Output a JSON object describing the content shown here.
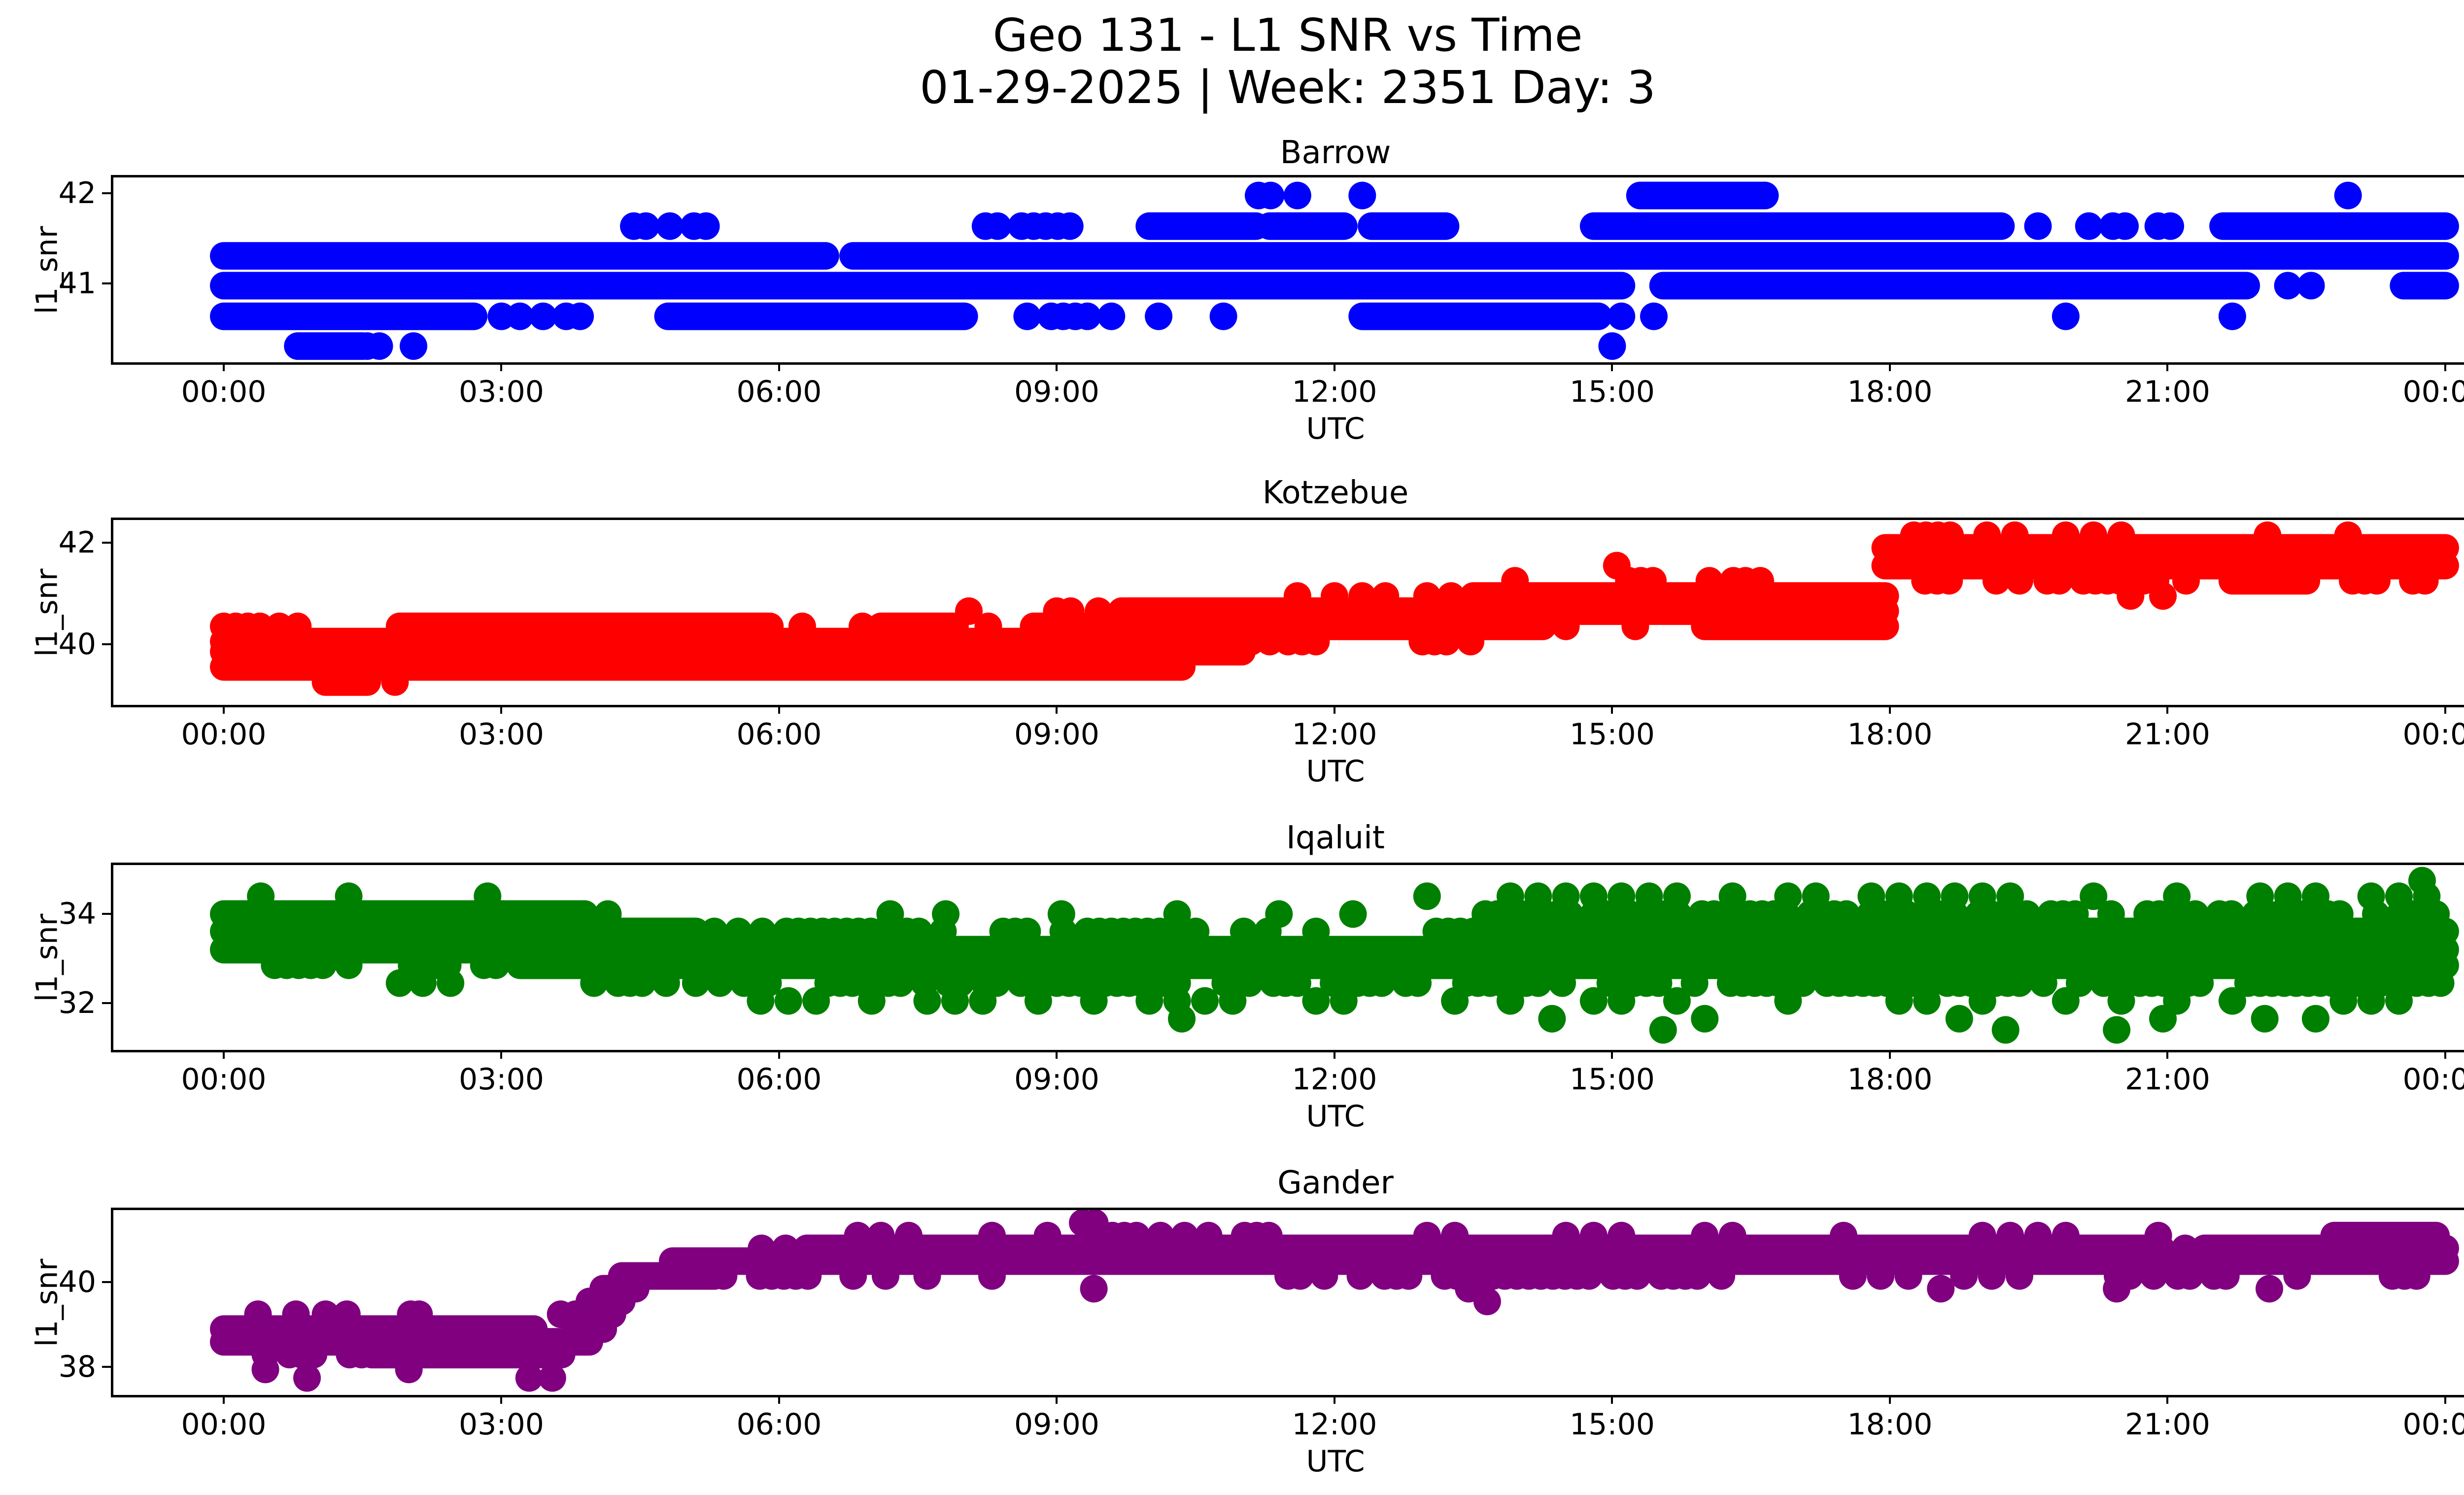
{
  "figure": {
    "suptitle_line1": "Geo 131 - L1 SNR vs Time",
    "suptitle_line2": "01-29-2025 | Week: 2351 Day: 3",
    "background_color": "#ffffff",
    "text_color": "#000000"
  },
  "xaxis": {
    "label": "UTC",
    "tick_hours": [
      0,
      3,
      6,
      9,
      12,
      15,
      18,
      21,
      24
    ],
    "tick_labels": [
      "00:00",
      "03:00",
      "06:00",
      "09:00",
      "12:00",
      "15:00",
      "18:00",
      "21:00",
      "00:00"
    ]
  },
  "chart_data": [
    {
      "type": "scatter",
      "title": "Barrow",
      "color": "#0000ff",
      "ylabel": "l1_snr",
      "xlabel": "UTC",
      "x_range_hours": [
        0,
        24
      ],
      "ylim": [
        40.15,
        42.2
      ],
      "yticks": [
        {
          "value": 41,
          "label": "41"
        },
        {
          "value": 42,
          "label": "42"
        }
      ],
      "bands": [
        {
          "snr": 42.0,
          "segments": [
            [
              11.05,
              11.35,
              "m"
            ],
            [
              15.3,
              16.65,
              "d"
            ],
            [
              16.65,
              17.0,
              "m"
            ]
          ],
          "dots": [
            11.6,
            12.3,
            22.95
          ]
        },
        {
          "snr": 41.66,
          "segments": [
            [
              4.3,
              5.3,
              "m"
            ],
            [
              8.1,
              9.3,
              "m"
            ],
            [
              10.0,
              11.15,
              "d"
            ],
            [
              11.3,
              12.1,
              "d"
            ],
            [
              12.4,
              13.2,
              "d"
            ],
            [
              14.8,
              19.2,
              "d"
            ],
            [
              20.15,
              20.6,
              "m"
            ],
            [
              20.9,
              21.25,
              "m"
            ],
            [
              21.6,
              24.0,
              "d"
            ]
          ],
          "dots": [
            19.6
          ]
        },
        {
          "snr": 41.33,
          "segments": [
            [
              0.0,
              6.5,
              "d"
            ],
            [
              6.8,
              24.0,
              "d"
            ]
          ],
          "dots": []
        },
        {
          "snr": 41.0,
          "segments": [
            [
              0.0,
              15.1,
              "d"
            ],
            [
              15.55,
              21.85,
              "d"
            ],
            [
              23.55,
              24.0,
              "d"
            ]
          ],
          "dots": [
            22.3,
            22.55
          ]
        },
        {
          "snr": 40.66,
          "segments": [
            [
              0.0,
              2.7,
              "d"
            ],
            [
              4.8,
              8.0,
              "d"
            ],
            [
              8.55,
              9.7,
              "m"
            ],
            [
              12.3,
              14.85,
              "d"
            ]
          ],
          "dots": [
            3.0,
            3.2,
            3.45,
            3.7,
            3.85,
            10.1,
            10.8,
            15.1,
            15.45,
            19.9,
            21.7
          ]
        },
        {
          "snr": 40.33,
          "segments": [
            [
              0.8,
              1.5,
              "d"
            ],
            [
              1.55,
              1.8,
              "m"
            ]
          ],
          "dots": [
            2.05,
            15.0
          ]
        }
      ]
    },
    {
      "type": "scatter",
      "title": "Kotzebue",
      "color": "#ff0000",
      "ylabel": "l1_snr",
      "xlabel": "UTC",
      "x_range_hours": [
        0,
        24
      ],
      "ylim": [
        38.85,
        42.5
      ],
      "yticks": [
        {
          "value": 40,
          "label": "40"
        },
        {
          "value": 42,
          "label": "42"
        }
      ],
      "bands": [
        {
          "snr": 42.2,
          "segments": [
            [
              18.0,
              18.65,
              "m"
            ],
            [
              19.9,
              20.5,
              "s"
            ],
            [
              21.95,
              22.65,
              "m"
            ]
          ],
          "dots": [
            19.05,
            19.35,
            22.95
          ]
        },
        {
          "snr": 41.95,
          "segments": [
            [
              17.95,
              24.0,
              "d"
            ]
          ],
          "dots": []
        },
        {
          "snr": 41.6,
          "segments": [
            [
              17.95,
              24.0,
              "d"
            ]
          ],
          "dots": [
            15.05
          ]
        },
        {
          "snr": 41.3,
          "segments": [
            [
              15.05,
              15.65,
              "m"
            ],
            [
              16.05,
              16.45,
              "m"
            ],
            [
              18.25,
              18.75,
              "m"
            ],
            [
              19.7,
              20.9,
              "m"
            ],
            [
              21.7,
              22.5,
              "d"
            ],
            [
              23.0,
              23.9,
              "m"
            ]
          ],
          "dots": [
            13.95,
            16.6,
            19.15,
            19.4,
            21.2
          ]
        },
        {
          "snr": 41.0,
          "segments": [
            [
              13.0,
              13.35,
              "m"
            ],
            [
              13.5,
              17.95,
              "d"
            ]
          ],
          "dots": [
            11.6,
            12.0,
            12.3,
            12.55,
            20.6,
            20.95
          ]
        },
        {
          "snr": 40.7,
          "segments": [
            [
              9.7,
              17.95,
              "d"
            ]
          ],
          "dots": [
            8.05,
            9.0,
            9.15,
            9.45
          ]
        },
        {
          "snr": 40.4,
          "segments": [
            [
              0.0,
              0.4,
              "m"
            ],
            [
              1.9,
              5.9,
              "d"
            ],
            [
              7.1,
              7.9,
              "d"
            ],
            [
              8.0,
              8.3,
              "m"
            ],
            [
              8.75,
              14.25,
              "d"
            ],
            [
              16.0,
              17.95,
              "d"
            ]
          ],
          "dots": [
            0.6,
            0.8,
            6.25,
            6.9,
            14.5,
            15.25
          ]
        },
        {
          "snr": 40.1,
          "segments": [
            [
              0.0,
              11.1,
              "d"
            ],
            [
              12.95,
              13.5,
              "m"
            ]
          ],
          "dots": [
            11.3,
            11.5,
            11.65,
            11.8
          ]
        },
        {
          "snr": 39.9,
          "segments": [
            [
              0.0,
              11.0,
              "d"
            ]
          ],
          "dots": []
        },
        {
          "snr": 39.6,
          "segments": [
            [
              0.0,
              10.35,
              "d"
            ]
          ],
          "dots": []
        },
        {
          "snr": 39.3,
          "segments": [
            [
              1.1,
              1.55,
              "d"
            ]
          ],
          "dots": [
            1.85
          ]
        }
      ]
    },
    {
      "type": "scatter",
      "title": "Iqaluit",
      "color": "#008000",
      "ylabel": "l1_snr",
      "xlabel": "UTC",
      "x_range_hours": [
        0,
        24
      ],
      "ylim": [
        31.0,
        35.15
      ],
      "yticks": [
        {
          "value": 32,
          "label": "32"
        },
        {
          "value": 34,
          "label": "34"
        }
      ],
      "bands": [
        {
          "snr": 34.8,
          "segments": [],
          "dots": [
            23.75
          ]
        },
        {
          "snr": 34.45,
          "segments": [
            [
              2.85,
              3.1,
              "m"
            ],
            [
              13.0,
              24.0,
              "s"
            ]
          ],
          "dots": [
            0.4,
            1.35
          ]
        },
        {
          "snr": 34.05,
          "segments": [
            [
              0.0,
              3.9,
              "d"
            ],
            [
              7.2,
              8.6,
              "s"
            ],
            [
              13.5,
              24.0,
              "m"
            ]
          ],
          "dots": [
            4.15,
            9.05,
            10.3,
            11.4,
            12.2
          ]
        },
        {
          "snr": 33.66,
          "segments": [
            [
              0.0,
              5.1,
              "d"
            ],
            [
              5.3,
              13.5,
              "m"
            ],
            [
              13.5,
              24.0,
              "d"
            ]
          ],
          "dots": []
        },
        {
          "snr": 33.25,
          "segments": [
            [
              0.0,
              3.0,
              "d"
            ],
            [
              3.15,
              24.0,
              "d"
            ]
          ],
          "dots": []
        },
        {
          "snr": 32.9,
          "segments": [
            [
              0.55,
              1.2,
              "m"
            ],
            [
              1.9,
              2.95,
              "m"
            ],
            [
              3.2,
              24.0,
              "d"
            ]
          ],
          "dots": [
            1.35
          ]
        },
        {
          "snr": 32.5,
          "segments": [
            [
              4.0,
              5.0,
              "m"
            ],
            [
              5.1,
              24.0,
              "m"
            ]
          ],
          "dots": [
            1.9,
            2.15,
            2.45
          ]
        },
        {
          "snr": 32.1,
          "segments": [
            [
              5.5,
              24.0,
              "s"
            ]
          ],
          "dots": []
        },
        {
          "snr": 31.7,
          "segments": [
            [
              13.8,
              23.6,
              "s2"
            ]
          ],
          "dots": [
            10.35
          ]
        },
        {
          "snr": 31.45,
          "segments": [],
          "dots": [
            15.55,
            19.25,
            20.45
          ]
        }
      ]
    },
    {
      "type": "scatter",
      "title": "Gander",
      "color": "#800080",
      "ylabel": "l1_snr",
      "xlabel": "UTC",
      "x_range_hours": [
        0,
        24
      ],
      "ylim": [
        37.4,
        41.75
      ],
      "yticks": [
        {
          "value": 38,
          "label": "38"
        },
        {
          "value": 40,
          "label": "40"
        }
      ],
      "bands": [
        {
          "snr": 41.45,
          "segments": [
            [
              9.15,
              9.55,
              "m"
            ]
          ],
          "dots": []
        },
        {
          "snr": 41.15,
          "segments": [
            [
              7.4,
              9.1,
              "s"
            ],
            [
              9.6,
              11.3,
              "m"
            ],
            [
              11.5,
              20.1,
              "s"
            ],
            [
              22.8,
              23.9,
              "d"
            ]
          ],
          "dots": [
            6.85,
            7.1,
            20.9
          ]
        },
        {
          "snr": 40.85,
          "segments": [
            [
              5.55,
              6.3,
              "m"
            ],
            [
              6.3,
              20.8,
              "d"
            ],
            [
              20.8,
              21.4,
              "m"
            ],
            [
              21.4,
              24.0,
              "d"
            ]
          ],
          "dots": []
        },
        {
          "snr": 40.55,
          "segments": [
            [
              4.85,
              24.0,
              "d"
            ]
          ],
          "dots": []
        },
        {
          "snr": 40.2,
          "segments": [
            [
              4.3,
              5.3,
              "d"
            ],
            [
              5.4,
              6.5,
              "m"
            ],
            [
              11.5,
              16.5,
              "m"
            ],
            [
              17.0,
              19.9,
              "s"
            ],
            [
              20.2,
              21.7,
              "m"
            ],
            [
              23.3,
              23.8,
              "m"
            ]
          ],
          "dots": [
            6.8,
            7.15,
            7.6,
            8.3,
            22.4
          ]
        },
        {
          "snr": 39.9,
          "segments": [
            [
              4.1,
              4.45,
              "d"
            ]
          ],
          "dots": [
            9.4,
            13.45,
            18.55,
            20.45,
            22.1
          ]
        },
        {
          "snr": 39.6,
          "segments": [
            [
              3.95,
              4.3,
              "d"
            ]
          ],
          "dots": [
            13.65
          ]
        },
        {
          "snr": 39.3,
          "segments": [
            [
              3.8,
              4.2,
              "d"
            ]
          ],
          "dots": [
            0.37,
            0.78,
            1.1,
            1.33,
            2.02,
            2.11,
            3.64
          ]
        },
        {
          "snr": 38.95,
          "segments": [
            [
              0.0,
              3.35,
              "d"
            ],
            [
              3.45,
              3.65,
              "m"
            ]
          ],
          "dots": [
            3.8,
            3.95,
            4.1
          ]
        },
        {
          "snr": 38.65,
          "segments": [
            [
              0.0,
              3.95,
              "d"
            ]
          ],
          "dots": []
        },
        {
          "snr": 38.35,
          "segments": [
            [
              0.45,
              1.6,
              "m"
            ],
            [
              1.6,
              3.5,
              "d"
            ]
          ],
          "dots": [
            3.65
          ]
        },
        {
          "snr": 38.0,
          "segments": [],
          "dots": [
            0.45,
            2.0
          ]
        },
        {
          "snr": 37.8,
          "segments": [],
          "dots": [
            0.9,
            3.3,
            3.55
          ]
        }
      ]
    }
  ]
}
